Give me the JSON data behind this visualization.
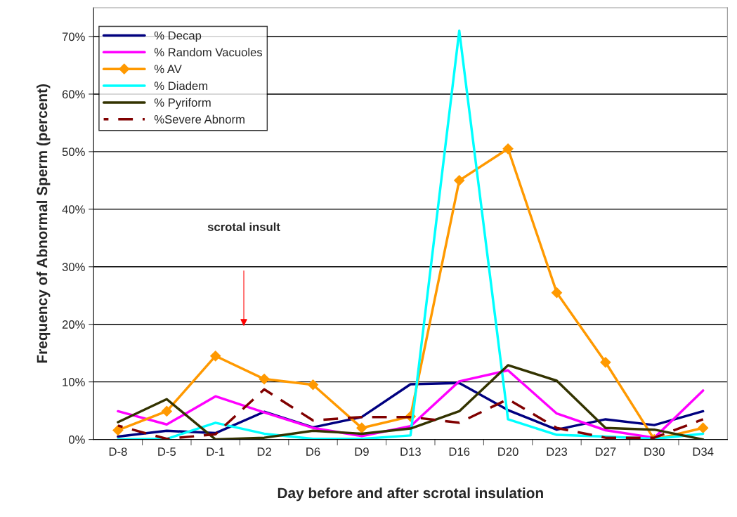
{
  "chart_data": {
    "type": "line",
    "xlabel": "Day before and after scrotal insulation",
    "ylabel": "Frequency of Abnormal Sperm (percent)",
    "categories": [
      "D-8",
      "D-5",
      "D-1",
      "D2",
      "D6",
      "D9",
      "D13",
      "D16",
      "D20",
      "D23",
      "D27",
      "D30",
      "D34"
    ],
    "series": [
      {
        "name": "% Decap",
        "color": "#000080",
        "values": [
          0.5,
          1.5,
          1.1,
          4.8,
          2.1,
          3.9,
          9.6,
          9.8,
          5.1,
          1.7,
          3.5,
          2.5,
          4.9
        ]
      },
      {
        "name": "% Random Vacuoles",
        "color": "#ff00ff",
        "values": [
          4.9,
          2.6,
          7.5,
          4.7,
          2.0,
          0.6,
          2.3,
          10.1,
          12.0,
          4.5,
          1.6,
          0.3,
          8.5
        ]
      },
      {
        "name": "% AV",
        "color": "#ff9900",
        "marker": "diamond",
        "values": [
          1.6,
          4.9,
          14.5,
          10.5,
          9.5,
          2.0,
          4.0,
          45,
          50.5,
          25.5,
          13.4,
          0,
          2.0
        ]
      },
      {
        "name": "% Diadem",
        "color": "#00ffff",
        "values": [
          0,
          0.1,
          2.9,
          1.0,
          0.1,
          0.1,
          0.7,
          71,
          3.5,
          0.8,
          0.5,
          0.1,
          1.0
        ]
      },
      {
        "name": "% Pyriform",
        "color": "#333300",
        "values": [
          3.0,
          7.0,
          0,
          0.3,
          1.5,
          1.0,
          1.9,
          4.9,
          12.9,
          10.2,
          2.0,
          1.7,
          0
        ]
      },
      {
        "name": "%Severe Abnorm",
        "color": "#800000",
        "line_style": "dashed",
        "values": [
          2.4,
          0.1,
          0.9,
          8.7,
          3.3,
          3.9,
          3.9,
          2.9,
          7.0,
          2.0,
          0.3,
          0.3,
          3.5
        ]
      }
    ],
    "ylim": [
      0,
      75
    ],
    "yticks": [
      {
        "value": 0,
        "label": "0%"
      },
      {
        "value": 10,
        "label": "10%"
      },
      {
        "value": 20,
        "label": "20%"
      },
      {
        "value": 30,
        "label": "30%"
      },
      {
        "value": 40,
        "label": "40%"
      },
      {
        "value": 50,
        "label": "50%"
      },
      {
        "value": 60,
        "label": "60%"
      },
      {
        "value": 70,
        "label": "70%"
      }
    ],
    "grid": "y",
    "legend": "top left",
    "annotations": [
      "scrotal insult"
    ]
  }
}
